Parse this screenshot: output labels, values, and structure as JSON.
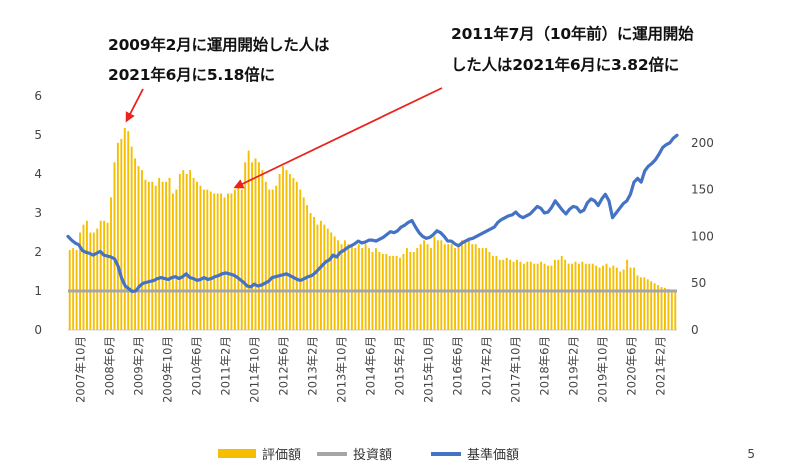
{
  "annotations": {
    "a1_line1": "2009年2月に運用開始した人は",
    "a1_line2": "2021年6月に5.18倍に",
    "a2_line1": "2011年7月（10年前）に運用開始",
    "a2_line2": "した人は2021年6月に3.82倍に"
  },
  "page_number": "5",
  "colors": {
    "bars": "#F5BE00",
    "investment_line": "#A6A6A6",
    "base_price_line": "#4472C4",
    "arrow": "#E8241B"
  },
  "chart_data": {
    "type": "bar",
    "title": "",
    "start_month": "2007年10月",
    "end_month": "2021年6月",
    "x_tick_labels": [
      "2007年10月",
      "2008年6月",
      "2009年2月",
      "2009年10月",
      "2010年6月",
      "2011年2月",
      "2011年10月",
      "2012年6月",
      "2013年2月",
      "2013年10月",
      "2014年6月",
      "2015年2月",
      "2015年10月",
      "2016年6月",
      "2017年2月",
      "2017年10月",
      "2018年6月",
      "2019年2月",
      "2019年10月",
      "2020年6月",
      "2021年2月"
    ],
    "y_left": {
      "range": [
        0,
        6
      ],
      "ticks": [
        0,
        1,
        2,
        3,
        4,
        5,
        6
      ]
    },
    "y_right": {
      "range": [
        0,
        250
      ],
      "ticks": [
        0,
        50,
        100,
        150,
        200
      ]
    },
    "legend": {
      "placement": "bottom",
      "items": [
        "評価額",
        "投資額",
        "基準価額"
      ]
    },
    "series": [
      {
        "name": "評価額",
        "kind": "bar",
        "axis": "left",
        "values": [
          2.05,
          2.1,
          2.05,
          2.5,
          2.7,
          2.8,
          2.5,
          2.5,
          2.6,
          2.8,
          2.8,
          2.75,
          3.4,
          4.3,
          4.8,
          4.9,
          5.18,
          5.1,
          4.7,
          4.4,
          4.2,
          4.1,
          3.85,
          3.8,
          3.8,
          3.7,
          3.9,
          3.8,
          3.8,
          3.9,
          3.5,
          3.6,
          4.0,
          4.1,
          4.0,
          4.1,
          3.9,
          3.8,
          3.7,
          3.6,
          3.6,
          3.55,
          3.5,
          3.5,
          3.5,
          3.4,
          3.5,
          3.5,
          3.6,
          3.7,
          3.6,
          4.3,
          4.6,
          4.3,
          4.4,
          4.3,
          4.1,
          3.8,
          3.6,
          3.6,
          3.7,
          4.0,
          4.2,
          4.1,
          4.0,
          3.9,
          3.8,
          3.6,
          3.4,
          3.2,
          3.0,
          2.9,
          2.7,
          2.8,
          2.7,
          2.6,
          2.5,
          2.4,
          2.3,
          2.2,
          2.3,
          2.2,
          2.2,
          2.1,
          2.2,
          2.1,
          2.2,
          2.1,
          2.0,
          2.1,
          2.0,
          1.95,
          1.95,
          1.9,
          1.9,
          1.9,
          1.85,
          1.95,
          2.1,
          2.0,
          2.0,
          2.1,
          2.2,
          2.3,
          2.2,
          2.1,
          2.4,
          2.3,
          2.3,
          2.2,
          2.2,
          2.2,
          2.1,
          2.2,
          2.3,
          2.3,
          2.3,
          2.2,
          2.2,
          2.1,
          2.1,
          2.1,
          2.0,
          1.9,
          1.9,
          1.8,
          1.8,
          1.85,
          1.8,
          1.75,
          1.8,
          1.75,
          1.7,
          1.75,
          1.75,
          1.7,
          1.7,
          1.75,
          1.7,
          1.65,
          1.65,
          1.8,
          1.8,
          1.9,
          1.8,
          1.7,
          1.7,
          1.75,
          1.7,
          1.75,
          1.7,
          1.7,
          1.7,
          1.65,
          1.6,
          1.65,
          1.7,
          1.6,
          1.65,
          1.6,
          1.5,
          1.55,
          1.8,
          1.6,
          1.6,
          1.4,
          1.35,
          1.35,
          1.3,
          1.25,
          1.2,
          1.15,
          1.1,
          1.08,
          1.05,
          1.02,
          1.0
        ]
      },
      {
        "name": "投資額",
        "kind": "line",
        "axis": "left",
        "values": [
          1.0,
          1.0
        ]
      },
      {
        "name": "基準価額",
        "kind": "line",
        "axis": "right",
        "values": [
          100,
          96,
          93,
          91,
          85,
          83,
          82,
          80,
          82,
          84,
          80,
          79,
          78,
          76,
          68,
          55,
          47,
          44,
          41,
          42,
          47,
          50,
          51,
          52,
          53,
          55,
          56,
          55,
          54,
          56,
          57,
          55,
          57,
          60,
          56,
          55,
          53,
          54,
          56,
          54,
          55,
          57,
          58,
          60,
          61,
          60,
          59,
          57,
          54,
          51,
          47,
          46,
          49,
          47,
          48,
          50,
          52,
          56,
          57,
          58,
          59,
          60,
          58,
          56,
          54,
          53,
          55,
          57,
          58,
          61,
          65,
          69,
          73,
          75,
          80,
          78,
          83,
          85,
          88,
          90,
          92,
          95,
          93,
          94,
          96,
          96,
          95,
          97,
          99,
          102,
          105,
          104,
          106,
          110,
          112,
          115,
          117,
          110,
          104,
          100,
          98,
          99,
          102,
          106,
          104,
          100,
          95,
          95,
          92,
          90,
          93,
          95,
          97,
          98,
          100,
          102,
          104,
          106,
          108,
          110,
          115,
          118,
          120,
          122,
          123,
          126,
          122,
          120,
          122,
          124,
          128,
          132,
          130,
          125,
          126,
          131,
          138,
          133,
          128,
          124,
          129,
          132,
          131,
          126,
          128,
          136,
          140,
          138,
          133,
          140,
          145,
          138,
          120,
          125,
          130,
          135,
          138,
          145,
          158,
          162,
          158,
          170,
          175,
          178,
          182,
          188,
          195,
          198,
          200,
          205,
          208
        ]
      }
    ]
  }
}
